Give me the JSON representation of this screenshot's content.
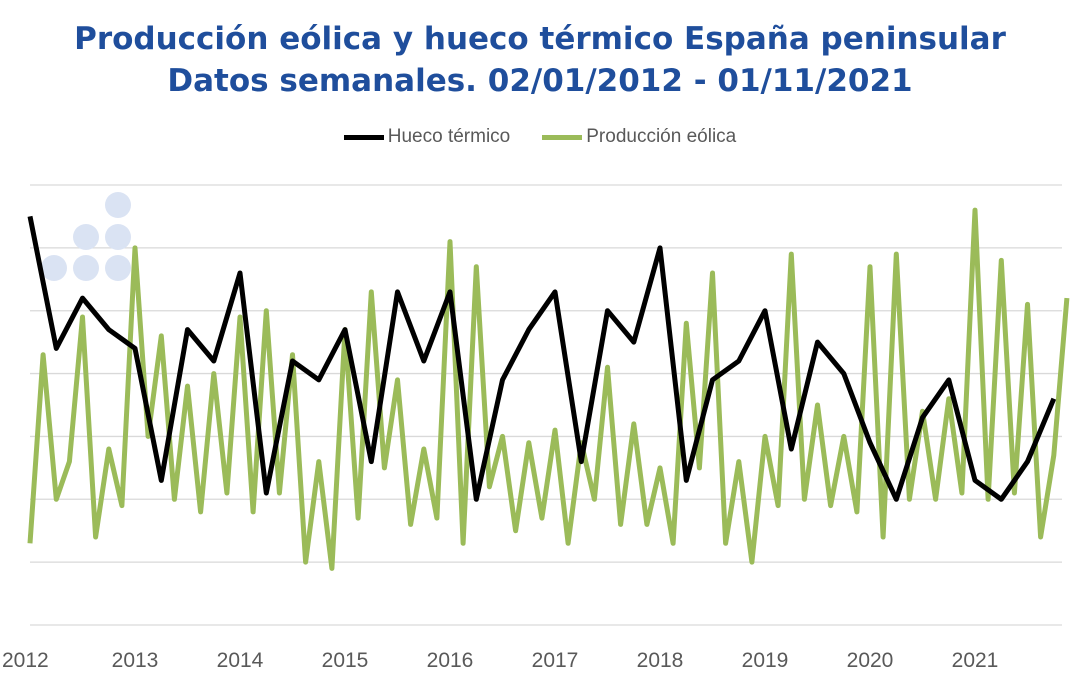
{
  "chart_data": {
    "type": "line",
    "title": "Producción eólica y hueco térmico España peninsular",
    "subtitle": "Datos semanales. 02/01/2012 - 01/11/2021",
    "xlabel": "",
    "ylabel": "",
    "x_tick_labels": [
      "2012",
      "2013",
      "2014",
      "2015",
      "2016",
      "2017",
      "2018",
      "2019",
      "2020",
      "2021"
    ],
    "xlim": [
      2012,
      2021.85
    ],
    "ylim": [
      0,
      7
    ],
    "grid": true,
    "legend": "top",
    "colors": {
      "Hueco térmico": "#000000",
      "Producción eólica": "#9bbb59",
      "title": "#1f4e9c",
      "watermark": "#dae3f3"
    },
    "series": [
      {
        "name": "Hueco térmico",
        "x_step_years": 0.25,
        "values": [
          6.5,
          4.4,
          5.2,
          4.7,
          4.4,
          2.3,
          4.7,
          4.2,
          5.6,
          2.1,
          4.2,
          3.9,
          4.7,
          2.6,
          5.3,
          4.2,
          5.3,
          2.0,
          3.9,
          4.7,
          5.3,
          2.6,
          5.0,
          4.5,
          6.0,
          2.3,
          3.9,
          4.2,
          5.0,
          2.8,
          4.5,
          4.0,
          2.9,
          2.0,
          3.3,
          3.9,
          2.3,
          2.0,
          2.6,
          3.6
        ]
      },
      {
        "name": "Producción eólica",
        "x_step_years": 0.125,
        "values": [
          1.3,
          4.3,
          2.0,
          2.6,
          4.9,
          1.4,
          2.8,
          1.9,
          6.0,
          3.0,
          4.6,
          2.0,
          3.8,
          1.8,
          4.0,
          2.1,
          4.9,
          1.8,
          5.0,
          2.1,
          4.3,
          1.0,
          2.6,
          0.9,
          4.7,
          1.7,
          5.3,
          2.5,
          3.9,
          1.6,
          2.8,
          1.7,
          6.1,
          1.3,
          5.7,
          2.2,
          3.0,
          1.5,
          2.9,
          1.7,
          3.1,
          1.3,
          2.9,
          2.0,
          4.1,
          1.6,
          3.2,
          1.6,
          2.5,
          1.3,
          4.8,
          2.5,
          5.6,
          1.3,
          2.6,
          1.0,
          3.0,
          1.9,
          5.9,
          2.0,
          3.5,
          1.9,
          3.0,
          1.8,
          5.7,
          1.4,
          5.9,
          2.0,
          3.4,
          2.0,
          3.6,
          2.1,
          6.6,
          2.0,
          5.8,
          2.1,
          5.1,
          1.4,
          2.7,
          5.2
        ]
      }
    ]
  }
}
